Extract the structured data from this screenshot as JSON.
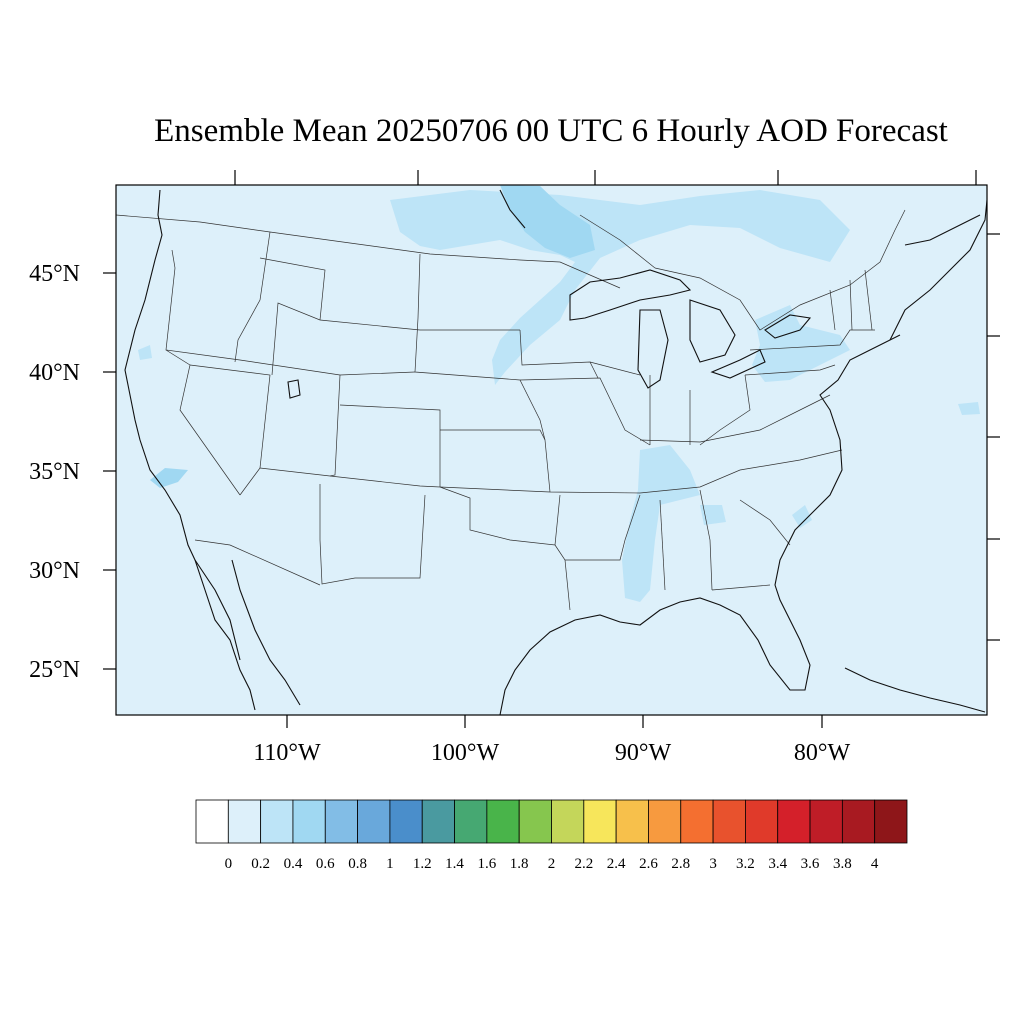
{
  "title": "Ensemble Mean 20250706 00 UTC 6 Hourly AOD Forecast",
  "map": {
    "background_color": "#ddf0fa",
    "lat_labels": [
      "45°N",
      "40°N",
      "35°N",
      "30°N",
      "25°N"
    ],
    "lon_labels": [
      "110°W",
      "100°W",
      "90°W",
      "80°W"
    ],
    "plume_colors": {
      "level_0_2_0_4": "#bde4f7",
      "level_0_4_0_6": "#a0d8f2"
    }
  },
  "colorbar": {
    "levels": [
      "0",
      "0.2",
      "0.4",
      "0.6",
      "0.8",
      "1",
      "1.2",
      "1.4",
      "1.6",
      "1.8",
      "2",
      "2.2",
      "2.4",
      "2.6",
      "2.8",
      "3",
      "3.2",
      "3.4",
      "3.6",
      "3.8",
      "4"
    ],
    "colors": [
      "#ffffff",
      "#ddf0fa",
      "#bde4f7",
      "#a0d8f2",
      "#82bde6",
      "#69a8db",
      "#4a8ecb",
      "#4a9aa0",
      "#46a872",
      "#49b44a",
      "#86c64e",
      "#c4d65a",
      "#f7e65b",
      "#f7c04b",
      "#f79a3f",
      "#f46f30",
      "#e8522d",
      "#e03a2a",
      "#d4202a",
      "#bf1d27",
      "#a81a21",
      "#8e1619"
    ]
  }
}
